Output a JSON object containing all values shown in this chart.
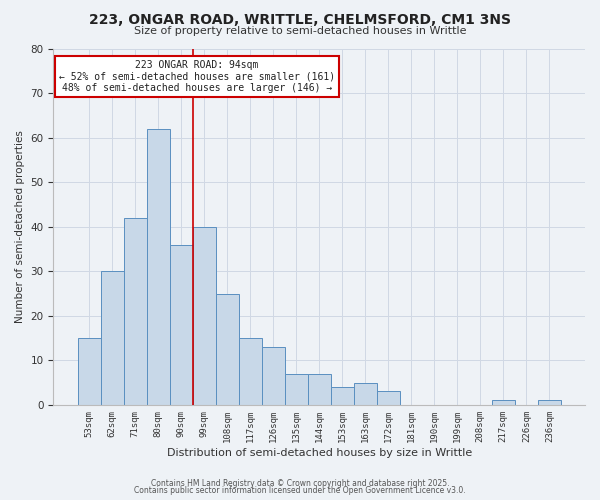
{
  "title_line1": "223, ONGAR ROAD, WRITTLE, CHELMSFORD, CM1 3NS",
  "title_line2": "Size of property relative to semi-detached houses in Writtle",
  "xlabel": "Distribution of semi-detached houses by size in Writtle",
  "ylabel": "Number of semi-detached properties",
  "categories": [
    "53sqm",
    "62sqm",
    "71sqm",
    "80sqm",
    "90sqm",
    "99sqm",
    "108sqm",
    "117sqm",
    "126sqm",
    "135sqm",
    "144sqm",
    "153sqm",
    "163sqm",
    "172sqm",
    "181sqm",
    "190sqm",
    "199sqm",
    "208sqm",
    "217sqm",
    "226sqm",
    "236sqm"
  ],
  "values": [
    15,
    30,
    42,
    62,
    36,
    40,
    25,
    15,
    13,
    7,
    7,
    4,
    5,
    3,
    0,
    0,
    0,
    0,
    1,
    0,
    1
  ],
  "bar_color": "#c8d8e8",
  "bar_edge_color": "#5a8fc0",
  "bar_width": 1.0,
  "vline_color": "#cc0000",
  "annotation_title": "223 ONGAR ROAD: 94sqm",
  "annotation_line2": "← 52% of semi-detached houses are smaller (161)",
  "annotation_line3": "48% of semi-detached houses are larger (146) →",
  "annotation_box_color": "#cc0000",
  "annotation_bg_color": "#ffffff",
  "ylim": [
    0,
    80
  ],
  "yticks": [
    0,
    10,
    20,
    30,
    40,
    50,
    60,
    70,
    80
  ],
  "grid_color": "#d0d8e4",
  "bg_color": "#eef2f6",
  "footer_line1": "Contains HM Land Registry data © Crown copyright and database right 2025.",
  "footer_line2": "Contains public sector information licensed under the Open Government Licence v3.0."
}
